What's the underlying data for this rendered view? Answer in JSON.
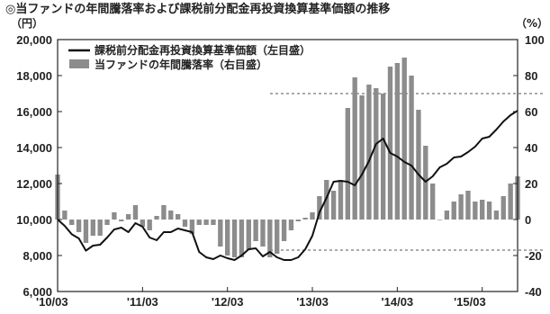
{
  "chart_data": {
    "type": "bar+line",
    "title": "◎当ファンドの年間騰落率および課税前分配金再投資換算基準価額の推移",
    "left_unit": "（円）",
    "right_unit": "（%）",
    "left_ylim": [
      6000,
      20000
    ],
    "right_ylim": [
      -40,
      100
    ],
    "left_ticks": [
      "20,000",
      "18,000",
      "16,000",
      "14,000",
      "12,000",
      "10,000",
      "8,000",
      "6,000"
    ],
    "right_ticks": [
      "100",
      "80",
      "60",
      "40",
      "20",
      "0",
      "-20",
      "-40"
    ],
    "x_tick_labels": [
      "'10/03",
      "'11/03",
      "'12/03",
      "'13/03",
      "'14/03",
      "'15/03"
    ],
    "x_tick_month_index": [
      0,
      12,
      24,
      36,
      48,
      60
    ],
    "reference_lines_right_axis": [
      70,
      -17
    ],
    "legend": [
      {
        "label": "課税前分配金再投資換算基準価額（左目盛）",
        "kind": "line",
        "color": "#111111"
      },
      {
        "label": "当ファンドの年間騰落率（右目盛）",
        "kind": "bar",
        "color": "#8c8c8c"
      }
    ],
    "series": [
      {
        "kind": "bar",
        "axis": "right",
        "unit": "%",
        "values": [
          25,
          5,
          -3,
          -7,
          -13,
          -9,
          -9,
          -3,
          4,
          -1,
          3,
          8,
          -4,
          -6,
          2,
          8,
          5,
          3,
          -4,
          -8,
          -3,
          -3,
          -3,
          -15,
          -20,
          -21,
          -21,
          -17,
          -12,
          -15,
          -21,
          -19,
          -12,
          -6,
          -1,
          1,
          4,
          13,
          22,
          16,
          22,
          62,
          79,
          69,
          75,
          73,
          70,
          85,
          87,
          90,
          80,
          61,
          41,
          20,
          0,
          5,
          10,
          14,
          16,
          10,
          11,
          10,
          5,
          13,
          20,
          24
        ]
      },
      {
        "kind": "line",
        "axis": "left",
        "unit": "円",
        "values": [
          10000,
          9650,
          9180,
          8950,
          8270,
          8550,
          8600,
          9000,
          9450,
          9550,
          9300,
          9800,
          9600,
          9000,
          8850,
          9300,
          9300,
          9500,
          9400,
          9300,
          8200,
          7900,
          7800,
          8000,
          7850,
          7750,
          8000,
          8350,
          8400,
          7950,
          8200,
          7900,
          7750,
          7750,
          7900,
          8350,
          9100,
          10400,
          11200,
          12100,
          12150,
          12100,
          11900,
          12500,
          13250,
          14200,
          14500,
          13700,
          13500,
          13200,
          13000,
          12500,
          12100,
          12400,
          12900,
          13100,
          13450,
          13500,
          13750,
          14050,
          14500,
          14600,
          15000,
          15450,
          15800,
          16050
        ]
      }
    ]
  }
}
